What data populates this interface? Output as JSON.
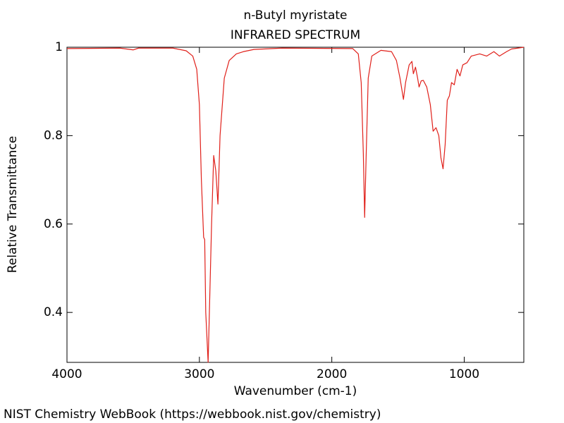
{
  "chart_data": {
    "type": "line",
    "title": "n-Butyl myristate",
    "subtitle": "INFRARED SPECTRUM",
    "x_label": "Wavenumber (cm-1)",
    "y_label": "Relative Transmittance",
    "annotation": "NIST Chemistry WebBook (https://webbook.nist.gov/chemistry)",
    "x": [
      4000,
      3600,
      3500,
      3460,
      3200,
      3100,
      3050,
      3020,
      3000,
      2985,
      2968,
      2960,
      2952,
      2934,
      2908,
      2892,
      2876,
      2860,
      2844,
      2812,
      2775,
      2721,
      2668,
      2588,
      2375,
      1842,
      1800,
      1778,
      1762,
      1752,
      1741,
      1725,
      1698,
      1629,
      1549,
      1512,
      1485,
      1459,
      1443,
      1416,
      1395,
      1384,
      1368,
      1352,
      1341,
      1325,
      1309,
      1283,
      1256,
      1235,
      1213,
      1192,
      1176,
      1160,
      1144,
      1128,
      1112,
      1096,
      1075,
      1054,
      1032,
      1011,
      979,
      947,
      883,
      830,
      776,
      734,
      680,
      643,
      550
    ],
    "series": [
      {
        "name": "n-Butyl myristate",
        "color": "#e0201a",
        "values": [
          0.997,
          0.998,
          0.994,
          0.998,
          0.998,
          0.992,
          0.98,
          0.95,
          0.87,
          0.7,
          0.57,
          0.565,
          0.4,
          0.287,
          0.6,
          0.755,
          0.72,
          0.645,
          0.8,
          0.93,
          0.97,
          0.985,
          0.99,
          0.995,
          0.998,
          0.997,
          0.985,
          0.92,
          0.76,
          0.615,
          0.75,
          0.93,
          0.98,
          0.993,
          0.99,
          0.97,
          0.93,
          0.882,
          0.92,
          0.96,
          0.968,
          0.94,
          0.955,
          0.93,
          0.91,
          0.924,
          0.925,
          0.91,
          0.87,
          0.81,
          0.818,
          0.8,
          0.75,
          0.725,
          0.78,
          0.88,
          0.89,
          0.92,
          0.915,
          0.95,
          0.935,
          0.96,
          0.965,
          0.98,
          0.985,
          0.98,
          0.99,
          0.98,
          0.99,
          0.996,
          1.0
        ]
      }
    ],
    "xlim": [
      4000,
      550
    ],
    "xticks": [
      4000,
      3000,
      2000,
      1000
    ],
    "ylim": [
      0.287,
      1
    ],
    "yticks": [
      1,
      0.8,
      0.6,
      0.4
    ]
  }
}
